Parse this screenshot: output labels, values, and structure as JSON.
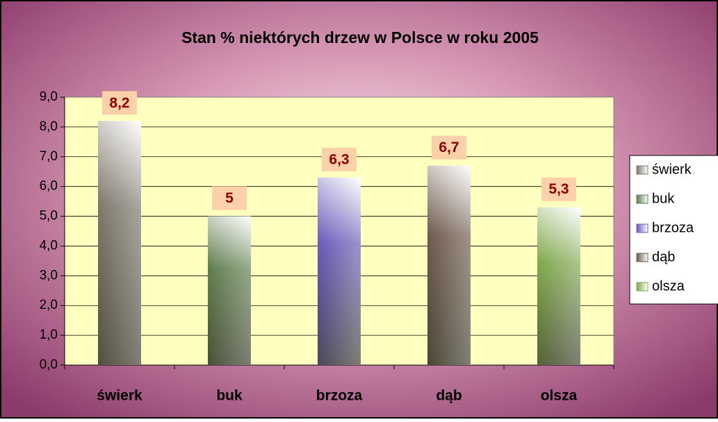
{
  "chart_data": {
    "type": "bar",
    "title": "Stan %  niektórych drzew w Polsce w roku 2005",
    "categories": [
      "świerk",
      "buk",
      "brzoza",
      "dąb",
      "olsza"
    ],
    "values": [
      8.2,
      5,
      6.3,
      6.7,
      5.3
    ],
    "value_labels": [
      "8,2",
      "5",
      "6,3",
      "6,7",
      "5,3"
    ],
    "colors": [
      "#7d776c",
      "#5e7d4e",
      "#6a5ab8",
      "#6e5a4c",
      "#7fa84e"
    ],
    "ylim": [
      0,
      9
    ],
    "yticks": [
      {
        "value": 0,
        "label": "0,0"
      },
      {
        "value": 1,
        "label": "1,0"
      },
      {
        "value": 2,
        "label": "2,0"
      },
      {
        "value": 3,
        "label": "3,0"
      },
      {
        "value": 4,
        "label": "4,0"
      },
      {
        "value": 5,
        "label": "5,0"
      },
      {
        "value": 6,
        "label": "6,0"
      },
      {
        "value": 7,
        "label": "7,0"
      },
      {
        "value": 8,
        "label": "8,0"
      },
      {
        "value": 9,
        "label": "9,0"
      }
    ],
    "grid": true,
    "legend": "right"
  }
}
